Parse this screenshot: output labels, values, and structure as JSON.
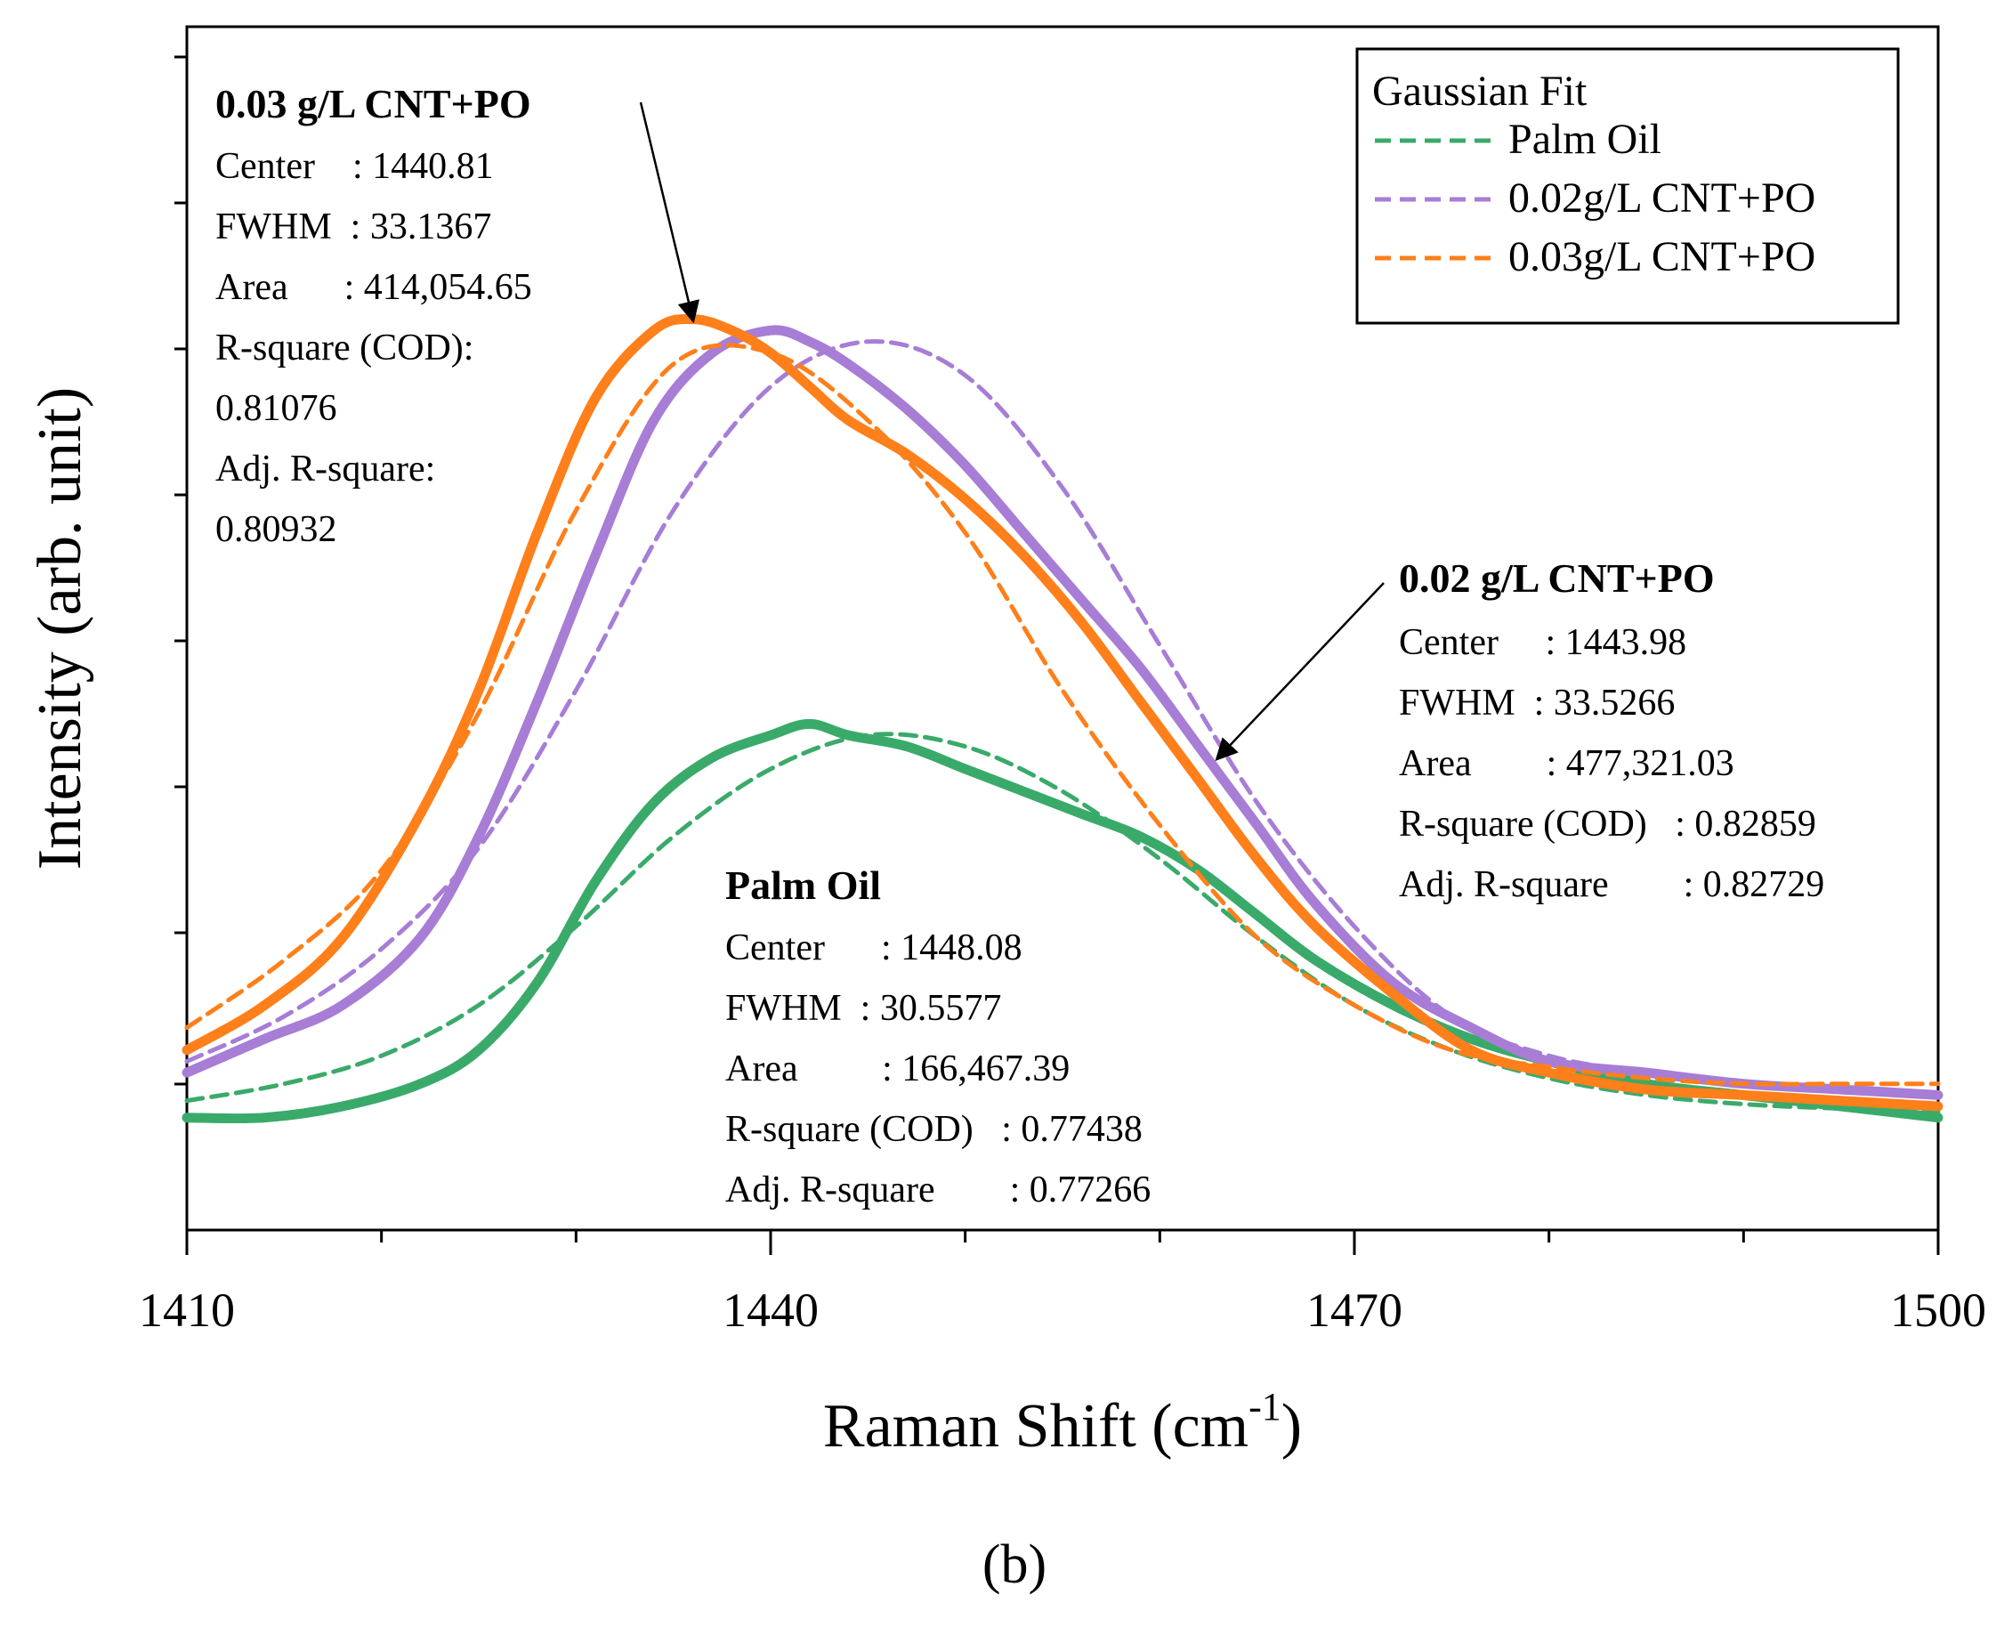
{
  "chart_data": {
    "type": "line",
    "xlabel": "Raman Shift (cm",
    "xlabel_sup": "-1",
    "xlabel_close": ")",
    "ylabel": "Intensity (arb. unit)",
    "xlim": [
      1410,
      1500
    ],
    "ylim": [
      0,
      1
    ],
    "x_ticks": [
      1410,
      1440,
      1470,
      1500
    ],
    "y_ticks_labeled": false,
    "grid": false,
    "panel_label": "(b)",
    "legend": {
      "position": "top-right",
      "title": "Gaussian Fit",
      "entries": [
        {
          "label": "Palm Oil",
          "color": "#3aaa6a",
          "dash": true
        },
        {
          "label": "0.02g/L CNT+PO",
          "color": "#a77dd6",
          "dash": true
        },
        {
          "label": "0.03g/L CNT+PO",
          "color": "#ff7f1a",
          "dash": true
        }
      ]
    },
    "series": [
      {
        "id": "palm-oil-data",
        "color": "#3aaa6a",
        "style": "solid",
        "x": [
          1410,
          1414,
          1418,
          1422,
          1425,
          1428,
          1431,
          1434,
          1437,
          1440,
          1442,
          1444,
          1447,
          1450,
          1453,
          1456,
          1459,
          1462,
          1465,
          1468,
          1472,
          1476,
          1480,
          1485,
          1490,
          1495,
          1500
        ],
        "y": [
          0.1,
          0.1,
          0.11,
          0.13,
          0.16,
          0.22,
          0.31,
          0.38,
          0.42,
          0.44,
          0.45,
          0.44,
          0.43,
          0.41,
          0.39,
          0.37,
          0.35,
          0.32,
          0.28,
          0.24,
          0.2,
          0.17,
          0.15,
          0.13,
          0.12,
          0.11,
          0.1
        ]
      },
      {
        "id": "palm-oil-fit",
        "color": "#3aaa6a",
        "style": "dashed",
        "x": [
          1410,
          1415,
          1420,
          1425,
          1430,
          1435,
          1440,
          1445,
          1450,
          1455,
          1460,
          1465,
          1470,
          1475,
          1480,
          1485,
          1490,
          1495,
          1500
        ],
        "y": [
          0.115,
          0.13,
          0.155,
          0.2,
          0.27,
          0.35,
          0.41,
          0.44,
          0.43,
          0.39,
          0.33,
          0.26,
          0.2,
          0.16,
          0.135,
          0.12,
          0.112,
          0.108,
          0.105
        ]
      },
      {
        "id": "cnt-002-data",
        "color": "#a77dd6",
        "style": "solid",
        "x": [
          1410,
          1414,
          1418,
          1422,
          1425,
          1428,
          1431,
          1434,
          1437,
          1440,
          1442,
          1444,
          1447,
          1450,
          1453,
          1456,
          1459,
          1462,
          1465,
          1468,
          1472,
          1476,
          1480,
          1485,
          1490,
          1495,
          1500
        ],
        "y": [
          0.14,
          0.17,
          0.2,
          0.26,
          0.35,
          0.47,
          0.6,
          0.72,
          0.78,
          0.8,
          0.79,
          0.77,
          0.73,
          0.68,
          0.62,
          0.56,
          0.5,
          0.43,
          0.36,
          0.29,
          0.22,
          0.18,
          0.15,
          0.14,
          0.13,
          0.125,
          0.12
        ]
      },
      {
        "id": "cnt-002-fit",
        "color": "#a77dd6",
        "style": "dashed",
        "x": [
          1410,
          1415,
          1420,
          1425,
          1430,
          1435,
          1440,
          1445,
          1450,
          1455,
          1460,
          1465,
          1470,
          1475,
          1480,
          1485,
          1490,
          1495,
          1500
        ],
        "y": [
          0.15,
          0.19,
          0.25,
          0.34,
          0.48,
          0.64,
          0.75,
          0.79,
          0.76,
          0.66,
          0.52,
          0.38,
          0.27,
          0.19,
          0.155,
          0.14,
          0.13,
          0.125,
          0.12
        ]
      },
      {
        "id": "cnt-003-data",
        "color": "#ff7f1a",
        "style": "solid",
        "x": [
          1410,
          1414,
          1418,
          1422,
          1425,
          1428,
          1431,
          1434,
          1436,
          1438,
          1440,
          1442,
          1444,
          1447,
          1450,
          1453,
          1456,
          1459,
          1462,
          1465,
          1468,
          1472,
          1476,
          1480,
          1485,
          1490,
          1495,
          1500
        ],
        "y": [
          0.16,
          0.2,
          0.26,
          0.37,
          0.48,
          0.62,
          0.74,
          0.8,
          0.81,
          0.8,
          0.78,
          0.75,
          0.72,
          0.69,
          0.65,
          0.6,
          0.54,
          0.47,
          0.4,
          0.33,
          0.27,
          0.21,
          0.16,
          0.14,
          0.125,
          0.12,
          0.115,
          0.11
        ]
      },
      {
        "id": "cnt-003-fit",
        "color": "#ff7f1a",
        "style": "dashed",
        "x": [
          1410,
          1415,
          1420,
          1425,
          1430,
          1435,
          1440,
          1445,
          1450,
          1455,
          1460,
          1465,
          1470,
          1475,
          1480,
          1485,
          1490,
          1495,
          1500
        ],
        "y": [
          0.18,
          0.24,
          0.32,
          0.46,
          0.64,
          0.77,
          0.78,
          0.72,
          0.62,
          0.48,
          0.36,
          0.26,
          0.2,
          0.16,
          0.145,
          0.135,
          0.13,
          0.13,
          0.13
        ]
      }
    ],
    "annotations": [
      {
        "id": "cnt-003",
        "title": "0.03 g/L CNT+PO",
        "lines": [
          "Center    : 1440.81",
          "FWHM  : 33.1367",
          "Area      : 414,054.65",
          "R-square (COD):",
          "0.81076",
          "Adj. R-square:",
          "0.80932"
        ],
        "arrow_to": [
          1436,
          0.81
        ]
      },
      {
        "id": "cnt-002",
        "title": "0.02 g/L CNT+PO",
        "lines": [
          "Center     : 1443.98",
          "FWHM  : 33.5266",
          "Area        : 477,321.03",
          "R-square (COD)   : 0.82859",
          "Adj. R-square        : 0.82729"
        ],
        "arrow_to": [
          1463,
          0.42
        ]
      },
      {
        "id": "palm-oil",
        "title": "Palm Oil",
        "lines": [
          "Center      : 1448.08",
          "FWHM  : 30.5577",
          "Area         : 166,467.39",
          "R-square (COD)   : 0.77438",
          "Adj. R-square        : 0.77266"
        ],
        "arrow_to": null
      }
    ]
  }
}
